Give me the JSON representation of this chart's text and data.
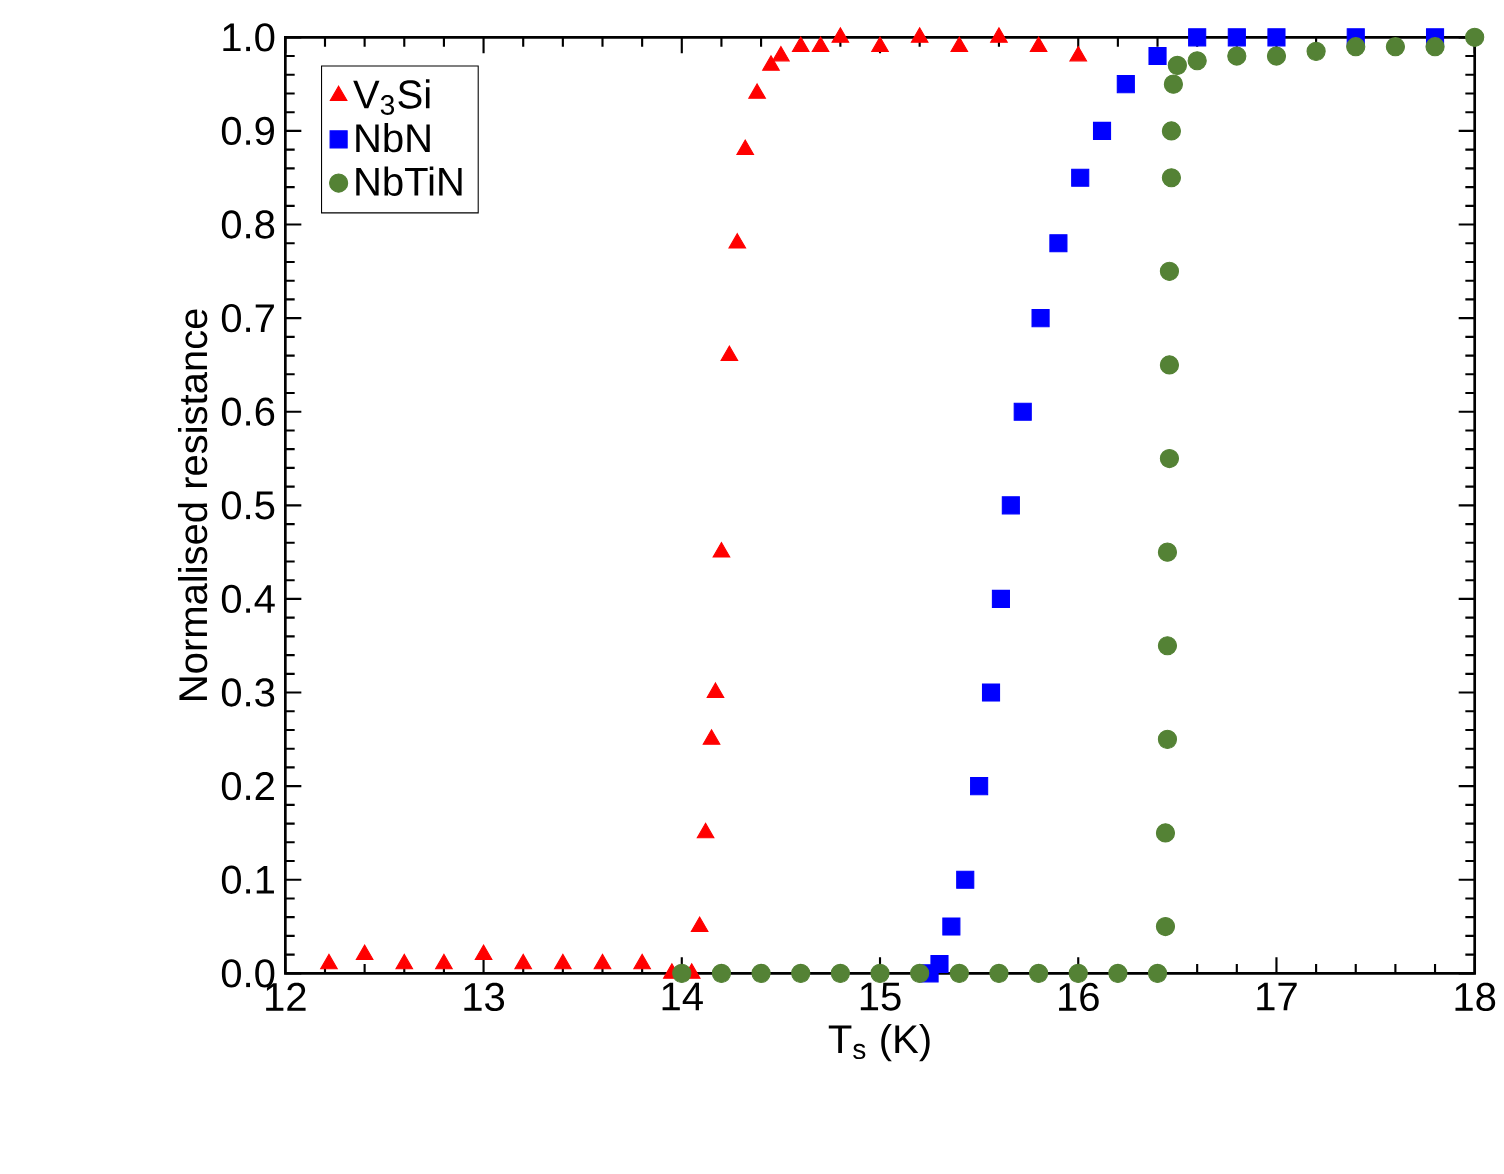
{
  "chart_data": {
    "type": "scatter",
    "xlabel": "T$_{s}$ (K)",
    "ylabel": "Normalised resistance",
    "xlim": [
      12,
      18
    ],
    "ylim": [
      0,
      1
    ],
    "xticks": [
      12,
      13,
      14,
      15,
      16,
      17,
      18
    ],
    "yticks": [
      {
        "value": 0,
        "label": "0.0"
      },
      {
        "value": 0.1,
        "label": "0.1"
      },
      {
        "value": 0.2,
        "label": "0.2"
      },
      {
        "value": 0.3,
        "label": "0.3"
      },
      {
        "value": 0.4,
        "label": "0.4"
      },
      {
        "value": 0.5,
        "label": "0.5"
      },
      {
        "value": 0.6,
        "label": "0.6"
      },
      {
        "value": 0.7,
        "label": "0.7"
      },
      {
        "value": 0.8,
        "label": "0.8"
      },
      {
        "value": 0.9,
        "label": "0.9"
      },
      {
        "value": 1,
        "label": "1.0"
      }
    ],
    "legend": "top left",
    "grid": false,
    "series": [
      {
        "name": "V$_{3}$Si",
        "color": "#ff0000",
        "marker": "triangle",
        "x": [
          12.22,
          12.4,
          12.6,
          12.8,
          13.0,
          13.2,
          13.4,
          13.6,
          13.8,
          13.95,
          14.05,
          14.09,
          14.12,
          14.15,
          14.17,
          14.2,
          14.24,
          14.28,
          14.32,
          14.38,
          14.45,
          14.5,
          14.6,
          14.7,
          14.8,
          15.0,
          15.2,
          15.4,
          15.6,
          15.8,
          16.0
        ],
        "values": [
          0.01,
          0.02,
          0.01,
          0.01,
          0.02,
          0.01,
          0.01,
          0.01,
          0.01,
          0.0,
          0.0,
          0.05,
          0.15,
          0.25,
          0.3,
          0.45,
          0.66,
          0.78,
          0.88,
          0.94,
          0.97,
          0.98,
          0.99,
          0.99,
          1.0,
          0.99,
          1.0,
          0.99,
          1.0,
          0.99,
          0.98
        ]
      },
      {
        "name": "NbN",
        "color": "#0000ff",
        "marker": "square",
        "x": [
          15.25,
          15.3,
          15.36,
          15.43,
          15.5,
          15.56,
          15.61,
          15.66,
          15.72,
          15.81,
          15.9,
          16.01,
          16.12,
          16.24,
          16.4,
          16.6,
          16.8,
          17.0,
          17.4,
          17.8
        ],
        "values": [
          0.0,
          0.01,
          0.05,
          0.1,
          0.2,
          0.3,
          0.4,
          0.5,
          0.6,
          0.7,
          0.78,
          0.85,
          0.9,
          0.95,
          0.98,
          1.0,
          1.0,
          1.0,
          1.0,
          1.0
        ]
      },
      {
        "name": "NbTiN",
        "color": "#548235",
        "marker": "circle",
        "x": [
          14.0,
          14.2,
          14.4,
          14.6,
          14.8,
          15.0,
          15.2,
          15.4,
          15.6,
          15.8,
          16.0,
          16.2,
          16.4,
          16.44,
          16.44,
          16.45,
          16.45,
          16.45,
          16.46,
          16.46,
          16.46,
          16.47,
          16.47,
          16.48,
          16.5,
          16.6,
          16.8,
          17.0,
          17.2,
          17.4,
          17.6,
          17.8,
          18.0
        ],
        "values": [
          0.0,
          0.0,
          0.0,
          0.0,
          0.0,
          0.0,
          0.0,
          0.0,
          0.0,
          0.0,
          0.0,
          0.0,
          0.0,
          0.05,
          0.15,
          0.25,
          0.35,
          0.45,
          0.55,
          0.65,
          0.75,
          0.85,
          0.9,
          0.95,
          0.97,
          0.975,
          0.98,
          0.98,
          0.985,
          0.99,
          0.99,
          0.99,
          1.0
        ]
      }
    ]
  }
}
